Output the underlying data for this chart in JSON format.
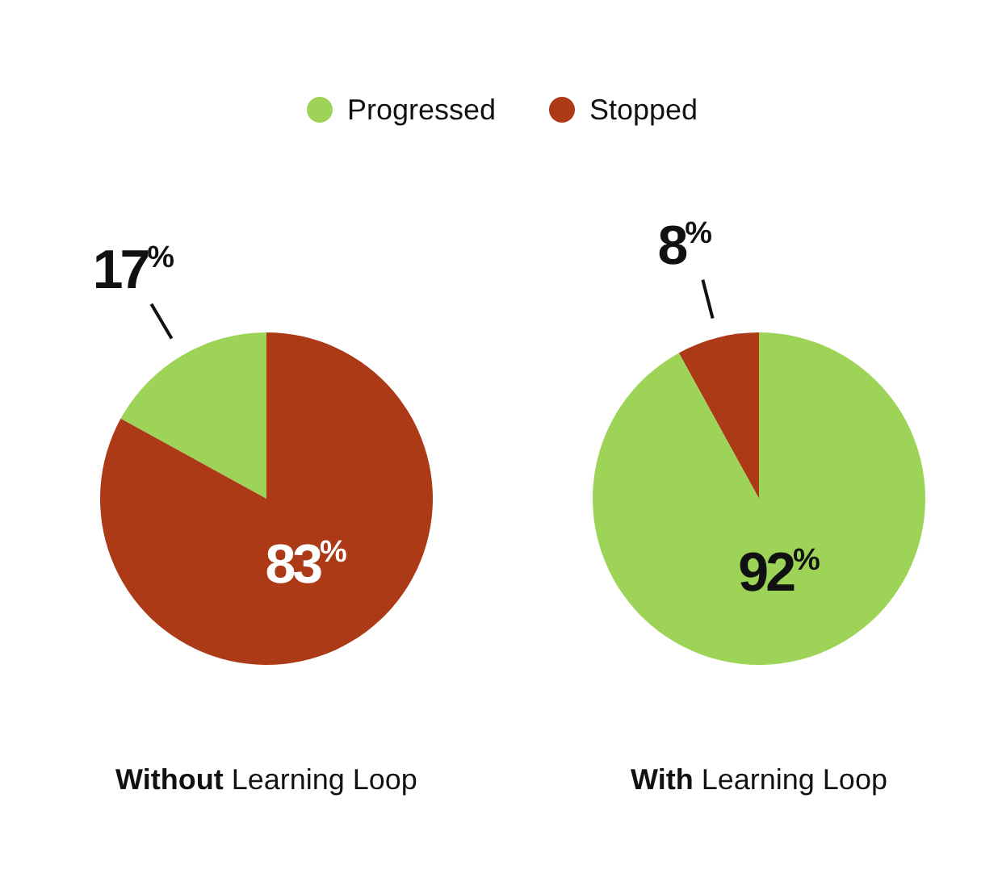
{
  "chart_data": [
    {
      "type": "pie",
      "title": "Without Learning Loop",
      "categories": [
        "Progressed",
        "Stopped"
      ],
      "values": [
        17,
        83
      ],
      "colors": [
        "#9dd356",
        "#ad3a17"
      ],
      "value_labels": [
        "17$^{%}$",
        "83$^{%}$"
      ],
      "legend": "top"
    },
    {
      "type": "pie",
      "title": "With Learning Loop",
      "categories": [
        null,
        null
      ],
      "values": [
        8,
        92
      ],
      "colors": [
        "#ad3a17",
        "#9dd356"
      ],
      "value_labels": [
        "8$^{%}$",
        "92$^{%}$"
      ]
    }
  ]
}
